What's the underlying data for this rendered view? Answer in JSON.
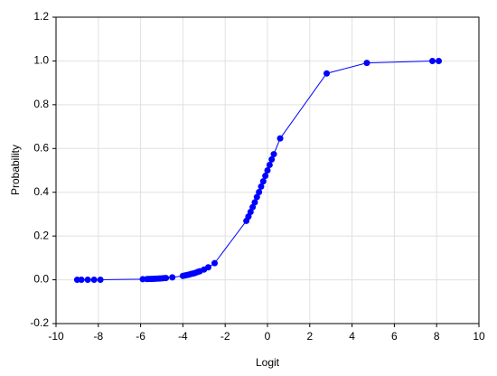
{
  "chart_data": {
    "type": "line",
    "x_label": "Logit",
    "y_label": "Probability",
    "x": [
      -9,
      -8.8,
      -8.5,
      -8.2,
      -7.9,
      -5.9,
      -5.7,
      -5.6,
      -5.5,
      -5.4,
      -5.3,
      -5.2,
      -5.1,
      -5.0,
      -4.9,
      -4.8,
      -4.5,
      -4.0,
      -3.9,
      -3.8,
      -3.7,
      -3.6,
      -3.5,
      -3.4,
      -3.3,
      -3.2,
      -3.0,
      -2.8,
      -2.5,
      -1.0,
      -0.9,
      -0.8,
      -0.7,
      -0.6,
      -0.5,
      -0.4,
      -0.3,
      -0.2,
      -0.1,
      0.0,
      0.1,
      0.2,
      0.3,
      0.6,
      2.8,
      4.7,
      7.8,
      8.1
    ],
    "values": [
      0.0001,
      0.0002,
      0.0002,
      0.0003,
      0.0004,
      0.0027,
      0.0033,
      0.0037,
      0.0041,
      0.0045,
      0.005,
      0.0055,
      0.0061,
      0.0067,
      0.0074,
      0.0082,
      0.011,
      0.018,
      0.02,
      0.022,
      0.024,
      0.027,
      0.029,
      0.032,
      0.036,
      0.039,
      0.047,
      0.057,
      0.076,
      0.269,
      0.289,
      0.31,
      0.332,
      0.354,
      0.378,
      0.401,
      0.426,
      0.45,
      0.475,
      0.5,
      0.525,
      0.55,
      0.574,
      0.646,
      0.943,
      0.991,
      0.9996,
      0.9997
    ],
    "color": "#0000ff",
    "xlim": [
      -10,
      10
    ],
    "xticks": [
      -10,
      -8,
      -6,
      -4,
      -2,
      0,
      2,
      4,
      6,
      8,
      10
    ],
    "ylim": [
      -0.2,
      1.2
    ],
    "yticks": [
      -0.2,
      {
        "value": 0,
        "label": "0.0"
      },
      0.2,
      0.4,
      0.6,
      0.8,
      {
        "value": 1,
        "label": "1.0"
      },
      1.2
    ],
    "grid": true
  }
}
